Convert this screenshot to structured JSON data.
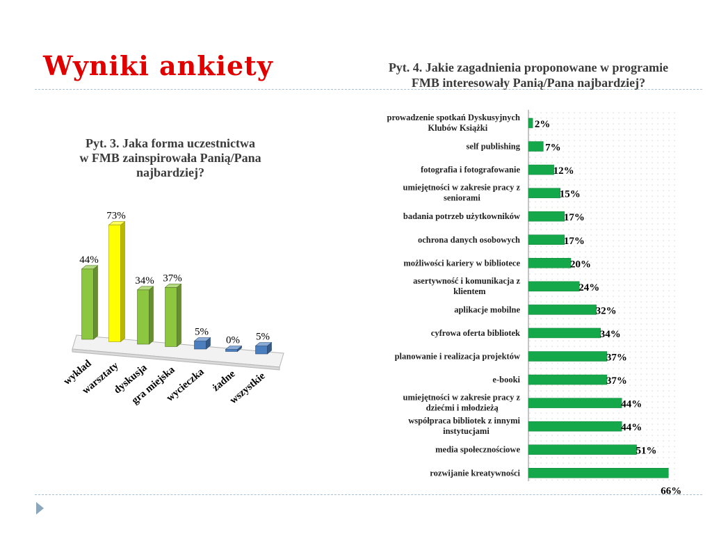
{
  "slide": {
    "title": "Wyniki ankiety"
  },
  "chart_data": [
    {
      "type": "bar",
      "title": "Pyt. 3. Jaka forma uczestnictwa w FMB zainspirowała Panią/Pana najbardziej?",
      "title_lines": [
        "Pyt. 3. Jaka forma uczestnictwa",
        "w FMB zainspirowała Panią/Pana",
        "najbardziej?"
      ],
      "categories": [
        "wykład",
        "warsztaty",
        "dyskusja",
        "gra miejska",
        "wycieczka",
        "żadne",
        "wszystkie"
      ],
      "values": [
        44,
        73,
        34,
        37,
        5,
        0,
        5
      ],
      "value_labels": [
        "44%",
        "73%",
        "34%",
        "37%",
        "5%",
        "0%",
        "5%"
      ],
      "unit": "%",
      "ylim": [
        0,
        80
      ],
      "colors": [
        "#8dc63f",
        "#ffff00",
        "#8dc63f",
        "#8dc63f",
        "#4a7ebf",
        "#4a7ebf",
        "#4a7ebf"
      ],
      "style": "3d-columns",
      "legend": "none"
    },
    {
      "type": "bar",
      "orientation": "horizontal",
      "title": "Pyt. 4. Jakie zagadnienia proponowane w programie FMB interesowały Panią/Pana najbardziej?",
      "title_lines": [
        "Pyt. 4. Jakie zagadnienia proponowane w programie",
        "FMB interesowały Panią/Pana najbardziej?"
      ],
      "categories": [
        [
          "prowadzenie spotkań Dyskusyjnych",
          "Klubów Książki"
        ],
        [
          "self publishing"
        ],
        [
          "fotografia i fotografowanie"
        ],
        [
          "umiejętności w zakresie pracy z",
          "seniorami"
        ],
        [
          "badania potrzeb użytkowników"
        ],
        [
          "ochrona danych osobowych"
        ],
        [
          "możliwości kariery w bibliotece"
        ],
        [
          "asertywność i komunikacja z",
          "klientem"
        ],
        [
          "aplikacje mobilne"
        ],
        [
          "cyfrowa oferta bibliotek"
        ],
        [
          "planowanie i realizacja projektów"
        ],
        [
          "e-booki"
        ],
        [
          "umiejętności w zakresie pracy z",
          "dziećmi i młodzieżą"
        ],
        [
          "współpraca bibliotek z innymi",
          "instytucjami"
        ],
        [
          "media społecznościowe"
        ],
        [
          "rozwijanie kreatywności"
        ]
      ],
      "values": [
        2,
        7,
        12,
        15,
        17,
        17,
        20,
        24,
        32,
        34,
        37,
        37,
        44,
        44,
        51,
        66
      ],
      "value_labels": [
        "2%",
        "7%",
        "12%",
        "15%",
        "17%",
        "17%",
        "20%",
        "24%",
        "32%",
        "34%",
        "37%",
        "37%",
        "44%",
        "44%",
        "51%",
        "66%"
      ],
      "unit": "%",
      "xlim": [
        0,
        70
      ],
      "color": "#14a84a",
      "grid": "dotted",
      "legend": "none"
    }
  ]
}
